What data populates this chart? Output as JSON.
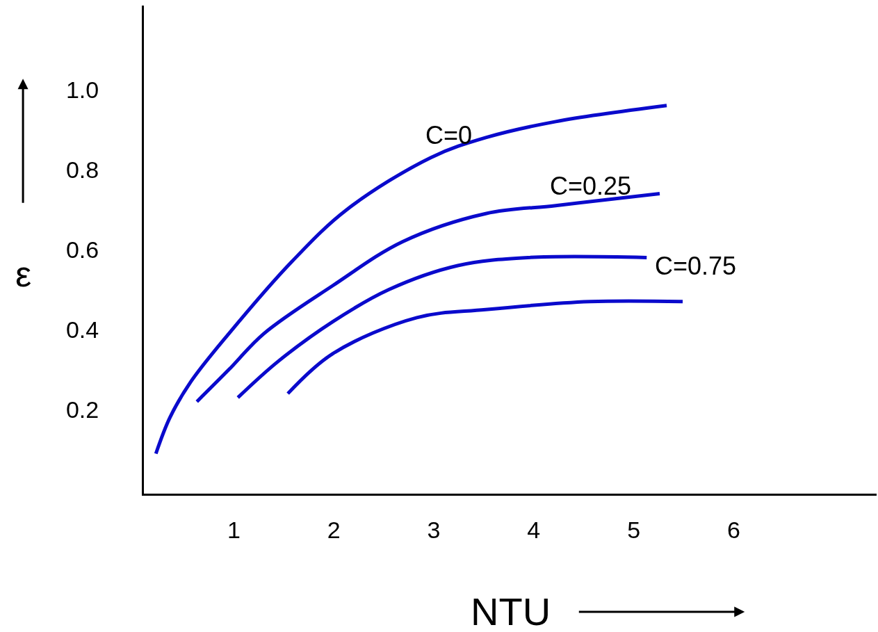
{
  "chart_data": {
    "type": "line",
    "xlabel": "NTU",
    "ylabel": "ε",
    "xlim": [
      0.1,
      7.43
    ],
    "ylim": [
      -0.01,
      1.21
    ],
    "xticks": [
      1,
      2,
      3,
      4,
      5,
      6
    ],
    "yticks": [
      {
        "value": 0.2,
        "label": "0.2"
      },
      {
        "value": 0.4,
        "label": "0.4"
      },
      {
        "value": 0.6,
        "label": "0.6"
      },
      {
        "value": 0.8,
        "label": "0.8"
      },
      {
        "value": 1.0,
        "label": "1.0"
      }
    ],
    "legend": false,
    "marker": "none",
    "line_style": "solid",
    "series": [
      {
        "name": "C=0",
        "color": "#0a0acc",
        "x": [
          0.22,
          0.36,
          0.57,
          0.95,
          1.58,
          2.13,
          2.97,
          3.52,
          4.22,
          5.33
        ],
        "values": [
          0.09,
          0.18,
          0.27,
          0.39,
          0.57,
          0.7,
          0.83,
          0.88,
          0.92,
          0.96
        ]
      },
      {
        "name": "C=0.25",
        "color": "#0a0acc",
        "x": [
          0.63,
          0.95,
          1.3,
          1.99,
          2.69,
          3.52,
          4.22,
          4.91,
          5.26
        ],
        "values": [
          0.22,
          0.3,
          0.39,
          0.51,
          0.62,
          0.69,
          0.71,
          0.73,
          0.74
        ]
      },
      {
        "name": "C=0.75",
        "color": "#0a0acc",
        "x": [
          1.04,
          1.44,
          1.99,
          2.55,
          3.24,
          3.94,
          5.13
        ],
        "values": [
          0.23,
          0.32,
          0.42,
          0.5,
          0.56,
          0.58,
          0.58
        ]
      },
      {
        "color": "#0a0acc",
        "x": [
          1.54,
          1.99,
          2.83,
          3.52,
          4.56,
          5.49
        ],
        "values": [
          0.24,
          0.34,
          0.43,
          0.45,
          0.47,
          0.47
        ]
      }
    ]
  }
}
